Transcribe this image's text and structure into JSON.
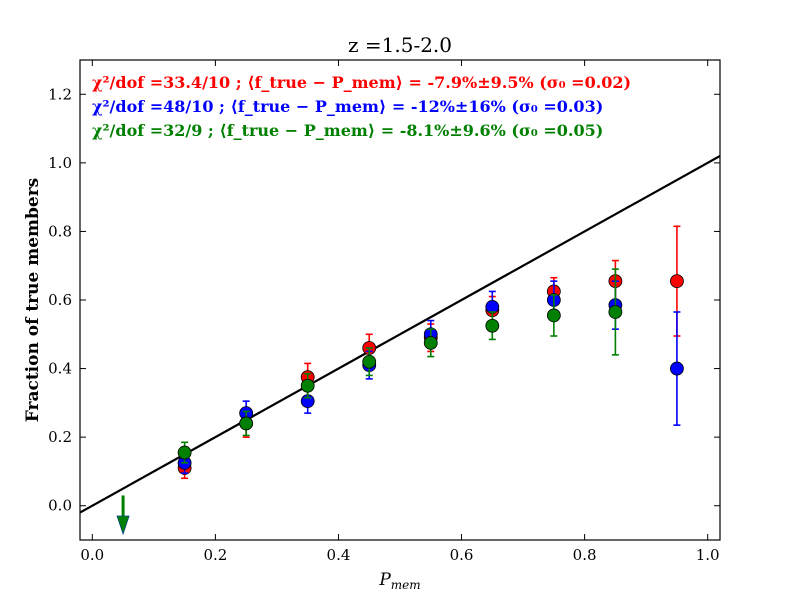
{
  "chart_data": {
    "type": "scatter",
    "title": "z =1.5-2.0",
    "xlabel": "P_mem",
    "ylabel": "Fraction of true members",
    "xlim": [
      -0.02,
      1.02
    ],
    "ylim": [
      -0.1,
      1.3
    ],
    "x_ticks": [
      "0.0",
      "0.2",
      "0.4",
      "0.6",
      "0.8",
      "1.0"
    ],
    "y_ticks": [
      "0.0",
      "0.2",
      "0.4",
      "0.6",
      "0.8",
      "1.0",
      "1.2"
    ],
    "x_tick_values": [
      0.0,
      0.2,
      0.4,
      0.6,
      0.8,
      1.0
    ],
    "y_tick_values": [
      0.0,
      0.2,
      0.4,
      0.6,
      0.8,
      1.0,
      1.2
    ],
    "grid": false,
    "annotations": [
      {
        "color": "#ff0000",
        "text": "χ²/dof =33.4/10 ; ⟨f_true − P_mem⟩ = -7.9%±9.5% (σ₀ =0.02)"
      },
      {
        "color": "#0000ff",
        "text": "χ²/dof =48/10 ; ⟨f_true − P_mem⟩ = -12%±16% (σ₀ =0.03)"
      },
      {
        "color": "#008000",
        "text": "χ²/dof =32/9 ; ⟨f_true − P_mem⟩ = -8.1%±9.6% (σ₀ =0.05)"
      }
    ],
    "reference_line": {
      "x": [
        -0.02,
        1.02
      ],
      "y": [
        -0.02,
        1.02
      ],
      "color": "#000000"
    },
    "series": [
      {
        "color": "#ff0000",
        "points": [
          {
            "x": 0.15,
            "y": 0.11,
            "err": 0.03
          },
          {
            "x": 0.25,
            "y": 0.24,
            "err": 0.04
          },
          {
            "x": 0.35,
            "y": 0.375,
            "err": 0.04
          },
          {
            "x": 0.45,
            "y": 0.46,
            "err": 0.04
          },
          {
            "x": 0.55,
            "y": 0.49,
            "err": 0.04
          },
          {
            "x": 0.65,
            "y": 0.57,
            "err": 0.04
          },
          {
            "x": 0.75,
            "y": 0.625,
            "err": 0.04
          },
          {
            "x": 0.85,
            "y": 0.655,
            "err": 0.06
          },
          {
            "x": 0.95,
            "y": 0.655,
            "err": 0.16
          }
        ]
      },
      {
        "color": "#0000ff",
        "points": [
          {
            "x": 0.15,
            "y": 0.125,
            "err": 0.03
          },
          {
            "x": 0.25,
            "y": 0.27,
            "err": 0.035
          },
          {
            "x": 0.35,
            "y": 0.305,
            "err": 0.035
          },
          {
            "x": 0.45,
            "y": 0.41,
            "err": 0.04
          },
          {
            "x": 0.55,
            "y": 0.5,
            "err": 0.04
          },
          {
            "x": 0.65,
            "y": 0.58,
            "err": 0.045
          },
          {
            "x": 0.75,
            "y": 0.6,
            "err": 0.055
          },
          {
            "x": 0.85,
            "y": 0.585,
            "err": 0.07
          },
          {
            "x": 0.95,
            "y": 0.4,
            "err": 0.165
          }
        ]
      },
      {
        "color": "#008000",
        "points": [
          {
            "x": 0.15,
            "y": 0.155,
            "err": 0.03
          },
          {
            "x": 0.25,
            "y": 0.24,
            "err": 0.035
          },
          {
            "x": 0.35,
            "y": 0.35,
            "err": 0.035
          },
          {
            "x": 0.45,
            "y": 0.42,
            "err": 0.04
          },
          {
            "x": 0.55,
            "y": 0.475,
            "err": 0.04
          },
          {
            "x": 0.65,
            "y": 0.525,
            "err": 0.04
          },
          {
            "x": 0.75,
            "y": 0.555,
            "err": 0.06
          },
          {
            "x": 0.85,
            "y": 0.565,
            "err": 0.125
          }
        ],
        "upper_limits": [
          {
            "x": 0.05,
            "y": 0.03
          }
        ]
      }
    ]
  }
}
